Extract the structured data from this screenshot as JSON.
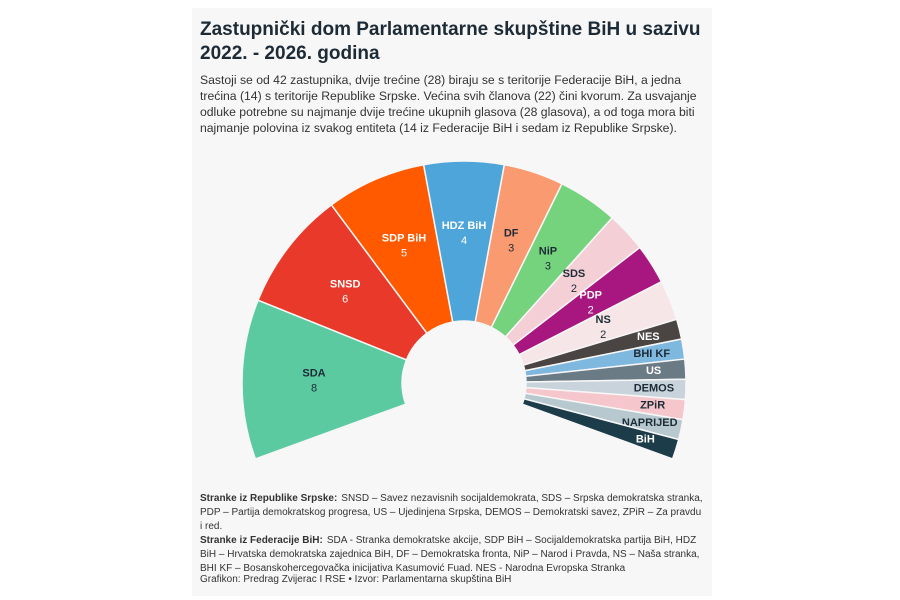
{
  "chart_data": {
    "type": "parliament",
    "title": "Zastupnički dom Parlamentarne skupštine BiH u sazivu 2022. - 2026. godina",
    "subtitle": "Sastoji se od 42 zastupnika, dvije trećine (28) biraju se s teritorije Federacije BiH, a jedna trećina (14) s teritorije Republike Srpske. Većina svih članova (22) čini kvorum. Za usvajanje odluke potrebne su najmanje dvije trećine ukupnih glasova (28 glasova), a od toga mora biti najmanje polovina iz svakog entiteta (14 iz Federacije BiH i sedam iz Republike Srpske).",
    "categories": [
      "SDA",
      "SNSD",
      "SDP BiH",
      "HDZ BiH",
      "DF",
      "NiP",
      "SDS",
      "PDP",
      "NS",
      "NES",
      "BHI KF",
      "US",
      "DEMOS",
      "ZPiR",
      "NAPRIJED",
      "BiH"
    ],
    "values": [
      8,
      6,
      5,
      4,
      3,
      3,
      2,
      2,
      2,
      1,
      1,
      1,
      1,
      1,
      1,
      1
    ],
    "colors": [
      "#5ccaa0",
      "#e8392a",
      "#ff5a00",
      "#4ea5d9",
      "#f99a70",
      "#74d37c",
      "#f4cfd6",
      "#a8177f",
      "#f7e6e8",
      "#4a4543",
      "#7fb8de",
      "#6b7b86",
      "#c9d3dc",
      "#f5c6cb",
      "#b7c9cf",
      "#1d3c4a"
    ],
    "notes": [
      {
        "label": "Stranke iz Republike Srpske:",
        "text": "SNSD – Savez nezavisnih socijaldemokrata, SDS – Srpska demokratska stranka, PDP – Partija demokratskog progresa, US – Ujedinjena Srpska, DEMOS – Demokratski savez, ZPiR – Za pravdu i red."
      },
      {
        "label": "Stranke iz Federacije BiH:",
        "text": "SDA - Stranka demokratske akcije, SDP BiH – Socijaldemokratska partija BiH, HDZ BiH – Hrvatska demokratska zajednica BiH, DF – Demokratska fronta, NiP – Narod i Pravda, NS – Naša stranka, BHI KF – Bosanskohercegovačka inicijativa Kasumović Fuad. NES - Narodna Evropska Stranka"
      }
    ],
    "source": "Grafikon: Predrag Zvijerac I RSE • Izvor: Parlamentarna skupština BiH"
  }
}
